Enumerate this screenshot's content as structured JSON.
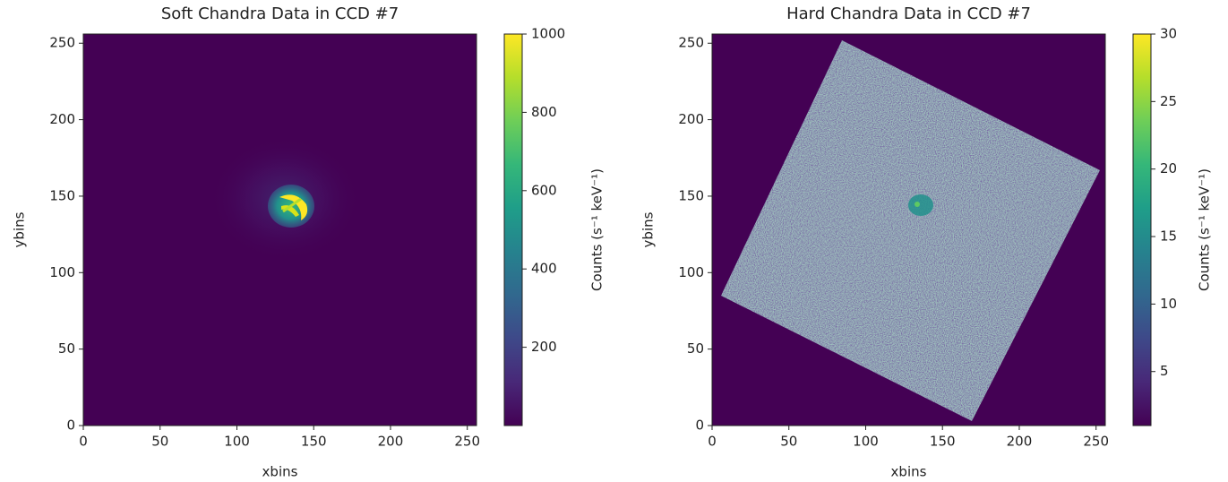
{
  "chart_data": [
    {
      "type": "heatmap",
      "title": "Soft Chandra Data in CCD #7",
      "xlabel": "xbins",
      "ylabel": "ybins",
      "xlim": [
        0,
        256
      ],
      "ylim": [
        0,
        256
      ],
      "xticks": [
        0,
        50,
        100,
        150,
        200,
        250
      ],
      "yticks": [
        0,
        50,
        100,
        150,
        200,
        250
      ],
      "colormap": "viridis",
      "colorbar_label": "Counts (s⁻¹ keV⁻¹)",
      "clim": [
        0,
        1000
      ],
      "cticks": [
        200,
        400,
        600,
        800,
        1000
      ]
    },
    {
      "type": "heatmap",
      "title": "Hard Chandra Data in CCD #7",
      "xlabel": "xbins",
      "ylabel": "ybins",
      "xlim": [
        0,
        256
      ],
      "ylim": [
        0,
        256
      ],
      "xticks": [
        0,
        50,
        100,
        150,
        200,
        250
      ],
      "yticks": [
        0,
        50,
        100,
        150,
        200,
        250
      ],
      "colormap": "viridis",
      "colorbar_label": "Counts (s⁻¹ keV⁻¹)",
      "clim": [
        1,
        30
      ],
      "cticks": [
        5,
        10,
        15,
        20,
        25,
        30
      ]
    }
  ]
}
